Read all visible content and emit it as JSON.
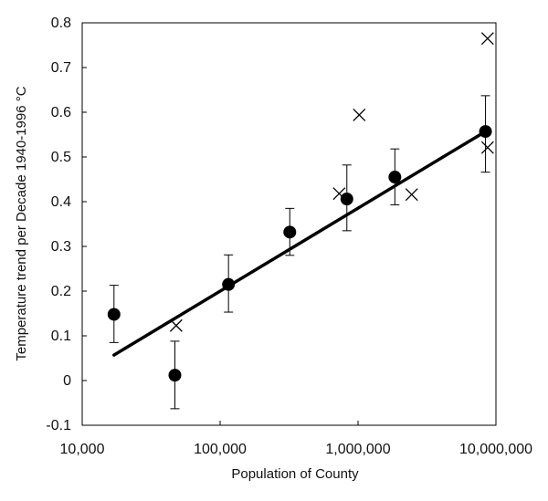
{
  "chart_data": {
    "type": "scatter",
    "title": "",
    "xlabel": "Population of County",
    "ylabel": "Temperature trend per Decade  1940-1996  °C",
    "x_scale": "log",
    "xlim": [
      10000,
      10000000
    ],
    "ylim": [
      -0.1,
      0.8
    ],
    "x_ticks": [
      10000,
      100000,
      1000000,
      10000000
    ],
    "x_tick_labels": [
      "10,000",
      "100,000",
      "1,000,000",
      "10,000,000"
    ],
    "y_ticks": [
      -0.1,
      0,
      0.1,
      0.2,
      0.3,
      0.4,
      0.5,
      0.6,
      0.7,
      0.8
    ],
    "y_tick_labels": [
      "-0.1",
      "0",
      "0.1",
      "0.2",
      "0.3",
      "0.4",
      "0.5",
      "0.6",
      "0.7",
      "0.8"
    ],
    "grid": false,
    "legend": "none",
    "series": [
      {
        "marker": "filled-circle",
        "color": "#000000",
        "points": [
          {
            "x": 17000,
            "y": 0.148,
            "err_low": 0.085,
            "err_high": 0.213
          },
          {
            "x": 47000,
            "y": 0.012,
            "err_low": -0.063,
            "err_high": 0.088
          },
          {
            "x": 115000,
            "y": 0.215,
            "err_low": 0.153,
            "err_high": 0.281
          },
          {
            "x": 320000,
            "y": 0.332,
            "err_low": 0.28,
            "err_high": 0.385
          },
          {
            "x": 830000,
            "y": 0.406,
            "err_low": 0.335,
            "err_high": 0.482
          },
          {
            "x": 1850000,
            "y": 0.455,
            "err_low": 0.393,
            "err_high": 0.518
          },
          {
            "x": 8400000,
            "y": 0.557,
            "err_low": 0.466,
            "err_high": 0.637
          }
        ]
      },
      {
        "marker": "x",
        "color": "#000000",
        "points": [
          {
            "x": 48000,
            "y": 0.123
          },
          {
            "x": 730000,
            "y": 0.418
          },
          {
            "x": 1020000,
            "y": 0.594
          },
          {
            "x": 2450000,
            "y": 0.416
          },
          {
            "x": 8700000,
            "y": 0.765
          },
          {
            "x": 8700000,
            "y": 0.521
          }
        ]
      }
    ],
    "trend_line": {
      "color": "#000000",
      "points": [
        {
          "x": 17000,
          "y": 0.057
        },
        {
          "x": 8500000,
          "y": 0.558
        }
      ]
    }
  }
}
